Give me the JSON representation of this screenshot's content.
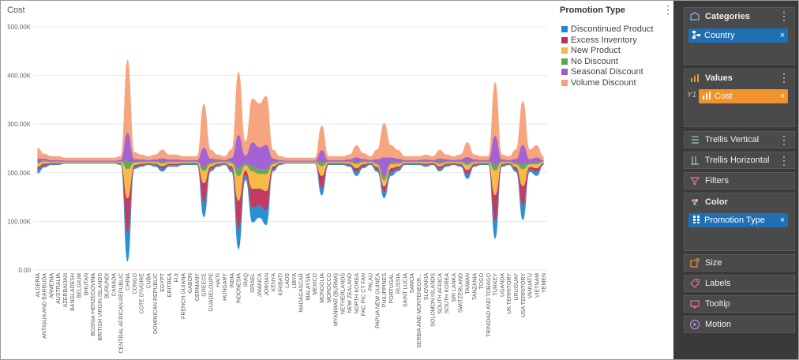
{
  "chart_title": "Cost",
  "chart_data": {
    "type": "area",
    "ylabel": "Cost",
    "ylim": [
      0,
      500000
    ],
    "y_ticks": [
      "0.00",
      "100.00K",
      "200.00K",
      "300.00K",
      "400.00K",
      "500.00K"
    ],
    "baseline": 225000,
    "categories": [
      "ALGERIA",
      "ANTIGUA AND BARBUDA",
      "ARMENIA",
      "AUSTRALIA",
      "AZERBAIJAN",
      "BANGLADESH",
      "BELGIUM",
      "BHUTAN",
      "BOSNIA-HERZEGOVINA",
      "BRITISH VIRGIN ISLANDS",
      "BURUNDI",
      "CANADA",
      "CENTRAL AFRICAN REPUBLIC",
      "CHINA",
      "CONGO",
      "COTE D'IVOIRE",
      "CUBA",
      "DOMINICAN REPUBLIC",
      "EGYPT",
      "ERITREA",
      "FIJI",
      "FRENCH GUIANA",
      "GABON",
      "GERMANY",
      "GREECE",
      "GUADELOUPE",
      "HAITI",
      "HUNGARY",
      "INDIA",
      "INDONESIA",
      "IRAQ",
      "ISRAEL",
      "JAMAICA",
      "JORDAN",
      "KENYA",
      "KIRIBATI",
      "LAOS",
      "LIBYA",
      "MADAGASCAR",
      "MALAYSIA",
      "MEXICO",
      "MONGOLIA",
      "MOROCCO",
      "MYANMAR (BURMA)",
      "NETHERLANDS",
      "NEW ZEALAND",
      "NORTH KOREA",
      "PAC PIC CT FAN",
      "PALAU",
      "PAPUA NEW GUINEA",
      "PHILIPPINES",
      "PORTUGAL",
      "RUSSIA",
      "SAINT LUCIA",
      "SAMOA",
      "SERBIA AND MONTENEGR...",
      "SLOVAKIA",
      "SOLOMON ISLANDS",
      "SOUTH AFRICA",
      "SOUTH KOREA",
      "SRI LANKA",
      "SWITZERLAND",
      "TAIWAN",
      "TANZANIA",
      "TOGO",
      "TRINIDAD AND TOBAGO",
      "TURKEY",
      "UGANDA",
      "UK TERRITORY",
      "URUGUAY",
      "USA TERRITORY",
      "VANUATU",
      "VIETNAM",
      "YEMEN"
    ],
    "series": [
      {
        "name": "Discontinued Product",
        "color": "#1f8ad0",
        "values": [
          8000,
          4000,
          2000,
          2000,
          1000,
          1000,
          1000,
          1000,
          1000,
          1000,
          1000,
          1000,
          2000,
          60000,
          4000,
          3000,
          2000,
          3000,
          6000,
          3000,
          3000,
          2000,
          2000,
          2000,
          30000,
          5000,
          3000,
          2000,
          6000,
          40000,
          10000,
          30000,
          25000,
          30000,
          5000,
          2000,
          1000,
          1000,
          1000,
          1000,
          1000,
          15000,
          2000,
          2000,
          2000,
          3000,
          8000,
          4000,
          2000,
          5000,
          12000,
          8000,
          5000,
          2000,
          2000,
          2000,
          3000,
          2000,
          5000,
          3000,
          2000,
          3000,
          8000,
          3000,
          2000,
          2000,
          35000,
          3000,
          2000,
          5000,
          30000,
          5000,
          8000,
          2000
        ]
      },
      {
        "name": "Excess Inventory",
        "color": "#c0305a",
        "values": [
          6000,
          4000,
          2000,
          2000,
          1000,
          1000,
          1000,
          1000,
          1000,
          1000,
          1000,
          1000,
          2000,
          70000,
          4000,
          3000,
          2000,
          3000,
          5000,
          3000,
          3000,
          2000,
          2000,
          2000,
          40000,
          5000,
          3000,
          2000,
          6000,
          60000,
          10000,
          40000,
          35000,
          40000,
          5000,
          2000,
          1000,
          1000,
          1000,
          1000,
          1000,
          25000,
          2000,
          2000,
          2000,
          3000,
          8000,
          4000,
          2000,
          5000,
          12000,
          8000,
          5000,
          2000,
          2000,
          2000,
          3000,
          2000,
          5000,
          3000,
          2000,
          3000,
          10000,
          3000,
          2000,
          2000,
          55000,
          3000,
          2000,
          5000,
          40000,
          5000,
          8000,
          2000
        ]
      },
      {
        "name": "New Product",
        "color": "#f5b63f",
        "values": [
          6000,
          4000,
          2000,
          2000,
          1000,
          1000,
          1000,
          1000,
          1000,
          1000,
          1000,
          1000,
          2000,
          60000,
          4000,
          3000,
          2000,
          3000,
          5000,
          3000,
          3000,
          2000,
          2000,
          2000,
          25000,
          5000,
          3000,
          2000,
          6000,
          50000,
          10000,
          35000,
          30000,
          35000,
          5000,
          2000,
          1000,
          1000,
          1000,
          1000,
          1000,
          20000,
          2000,
          2000,
          2000,
          3000,
          8000,
          4000,
          2000,
          5000,
          12000,
          8000,
          5000,
          2000,
          2000,
          2000,
          3000,
          2000,
          5000,
          3000,
          2000,
          3000,
          10000,
          3000,
          2000,
          2000,
          50000,
          3000,
          2000,
          5000,
          35000,
          5000,
          8000,
          2000
        ]
      },
      {
        "name": "No Discount",
        "color": "#5aa84a",
        "values": [
          3000,
          2000,
          1000,
          1000,
          1000,
          1000,
          1000,
          1000,
          1000,
          1000,
          1000,
          1000,
          1000,
          15000,
          2000,
          2000,
          1000,
          2000,
          3000,
          2000,
          2000,
          1000,
          1000,
          1000,
          8000,
          3000,
          2000,
          1000,
          3000,
          15000,
          5000,
          10000,
          10000,
          10000,
          3000,
          1000,
          1000,
          1000,
          1000,
          1000,
          1000,
          8000,
          1000,
          1000,
          1000,
          2000,
          4000,
          2000,
          1000,
          3000,
          8000,
          4000,
          3000,
          1000,
          1000,
          1000,
          2000,
          1000,
          3000,
          2000,
          1000,
          2000,
          5000,
          2000,
          1000,
          1000,
          12000,
          2000,
          1000,
          3000,
          10000,
          3000,
          4000,
          1000
        ]
      },
      {
        "name": "Seasonal Discount",
        "color": "#a05ad0",
        "values": [
          8000,
          4000,
          3000,
          3000,
          2000,
          2000,
          2000,
          2000,
          2000,
          2000,
          2000,
          2000,
          3000,
          60000,
          6000,
          4000,
          3000,
          4000,
          8000,
          4000,
          4000,
          3000,
          3000,
          3000,
          40000,
          8000,
          4000,
          3000,
          8000,
          70000,
          15000,
          50000,
          45000,
          50000,
          8000,
          3000,
          2000,
          2000,
          2000,
          2000,
          2000,
          25000,
          3000,
          3000,
          3000,
          4000,
          10000,
          5000,
          3000,
          8000,
          40000,
          10000,
          8000,
          3000,
          3000,
          3000,
          4000,
          3000,
          8000,
          4000,
          3000,
          4000,
          12000,
          4000,
          3000,
          3000,
          60000,
          4000,
          3000,
          8000,
          40000,
          8000,
          10000,
          3000
        ]
      },
      {
        "name": "Volume Discount",
        "color": "#f5a077",
        "values": [
          22000,
          10000,
          8000,
          8000,
          6000,
          6000,
          6000,
          6000,
          6000,
          6000,
          6000,
          6000,
          8000,
          150000,
          14000,
          10000,
          8000,
          10000,
          18000,
          10000,
          10000,
          8000,
          8000,
          8000,
          90000,
          18000,
          10000,
          8000,
          18000,
          130000,
          30000,
          90000,
          90000,
          100000,
          18000,
          8000,
          6000,
          6000,
          6000,
          6000,
          6000,
          50000,
          8000,
          8000,
          8000,
          10000,
          25000,
          12000,
          8000,
          20000,
          70000,
          25000,
          18000,
          8000,
          8000,
          8000,
          10000,
          8000,
          18000,
          10000,
          8000,
          10000,
          30000,
          10000,
          8000,
          8000,
          110000,
          10000,
          8000,
          20000,
          90000,
          20000,
          25000,
          8000
        ]
      }
    ]
  },
  "legend": {
    "title": "Promotion Type",
    "items": [
      {
        "label": "Discontinued Product",
        "color": "#1f8ad0"
      },
      {
        "label": "Excess Inventory",
        "color": "#c0305a"
      },
      {
        "label": "New Product",
        "color": "#f5b63f"
      },
      {
        "label": "No Discount",
        "color": "#5aa84a"
      },
      {
        "label": "Seasonal Discount",
        "color": "#a05ad0"
      },
      {
        "label": "Volume Discount",
        "color": "#f5a077"
      }
    ]
  },
  "panel": {
    "categories": {
      "label": "Categories",
      "chip": "Country"
    },
    "values": {
      "label": "Values",
      "badge": "Y1",
      "chip": "Cost"
    },
    "trellis_vertical": {
      "label": "Trellis Vertical"
    },
    "trellis_horizontal": {
      "label": "Trellis Horizontal"
    },
    "filters": {
      "label": "Filters"
    },
    "color": {
      "label": "Color",
      "chip": "Promotion Type"
    },
    "size": {
      "label": "Size"
    },
    "labels": {
      "label": "Labels"
    },
    "tooltip": {
      "label": "Tooltip"
    },
    "motion": {
      "label": "Motion"
    },
    "close_glyph": "×",
    "menu_glyph": "⋮"
  }
}
